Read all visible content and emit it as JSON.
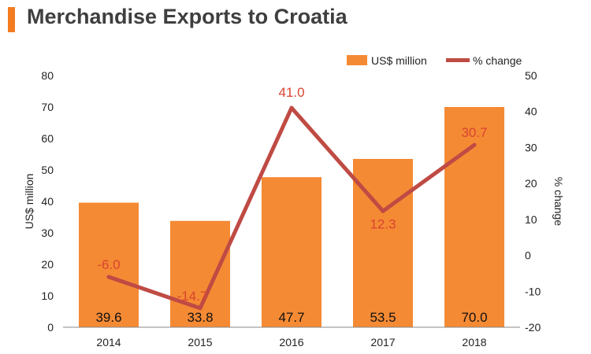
{
  "header": {
    "title": "Merchandise Exports to Croatia"
  },
  "colors": {
    "bar": "#f58a34",
    "line": "#bf4b44",
    "line_label": "#d9442f",
    "accent": "#f47b20"
  },
  "chart_data": {
    "type": "bar",
    "categories": [
      "2014",
      "2015",
      "2016",
      "2017",
      "2018"
    ],
    "series": [
      {
        "name": "US$ million",
        "type": "bar",
        "axis": "left",
        "values": [
          39.6,
          33.8,
          47.7,
          53.5,
          70.0
        ]
      },
      {
        "name": "% change",
        "type": "line",
        "axis": "right",
        "values": [
          -6.0,
          -14.7,
          41.0,
          12.3,
          30.7
        ]
      }
    ],
    "bar_labels": [
      "39.6",
      "33.8",
      "47.7",
      "53.5",
      "70.0"
    ],
    "line_labels": [
      "-6.0",
      "-14.7",
      "41.0",
      "12.3",
      "30.7"
    ],
    "ylabel": "US$ million",
    "ylabel_right": "% change",
    "ylim": [
      0,
      80
    ],
    "ylim_right": [
      -20,
      50
    ],
    "yticks": [
      "0",
      "10",
      "20",
      "30",
      "40",
      "50",
      "60",
      "70",
      "80"
    ],
    "yticks_right": [
      "-20",
      "-10",
      "0",
      "10",
      "20",
      "30",
      "40",
      "50"
    ],
    "legend": {
      "placement": "top-right",
      "entries": [
        "US$ million",
        "% change"
      ]
    },
    "grid": false
  }
}
